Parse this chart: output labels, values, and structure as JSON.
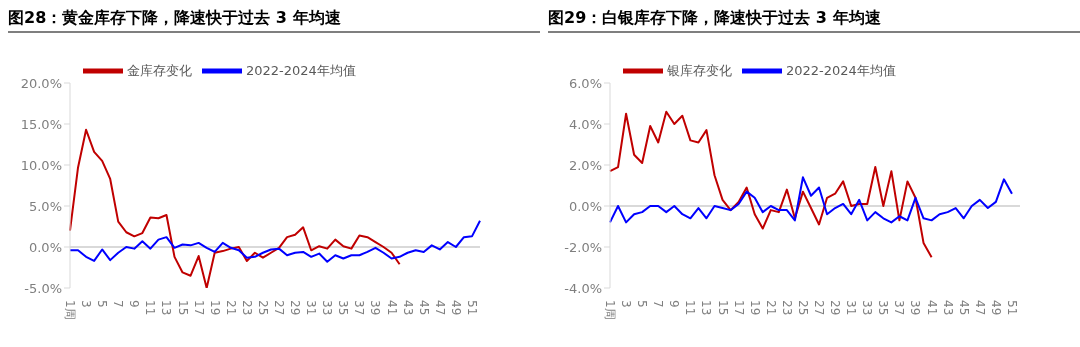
{
  "chart_data": [
    {
      "type": "line",
      "title": "图28：黄金库存下降，降速快于过去 3 年均速",
      "categories": [
        "1周",
        null,
        "3",
        null,
        "5",
        null,
        "7",
        null,
        "9",
        null,
        "11",
        null,
        "13",
        null,
        "15",
        null,
        "17",
        null,
        "19",
        null,
        "21",
        null,
        "23",
        null,
        "25",
        null,
        "27",
        null,
        "29",
        null,
        "31",
        null,
        "33",
        null,
        "35",
        null,
        "37",
        null,
        "39",
        null,
        "41",
        null,
        "43",
        null,
        "45",
        null,
        "47",
        null,
        "49",
        null,
        "51",
        null
      ],
      "series": [
        {
          "name": "金库存变化",
          "color": "#c00000",
          "values": [
            2.0,
            9.7,
            14.3,
            11.6,
            10.5,
            8.3,
            3.1,
            1.8,
            1.3,
            1.7,
            3.6,
            3.5,
            3.9,
            -1.2,
            -3.1,
            -3.5,
            -1.1,
            -5.0,
            -0.7,
            -0.5,
            -0.2,
            0.0,
            -1.7,
            -0.7,
            -1.3,
            -0.7,
            -0.1,
            1.2,
            1.5,
            2.4,
            -0.4,
            0.1,
            -0.2,
            0.9,
            0.1,
            -0.2,
            1.4,
            1.2,
            0.6,
            0.0,
            -0.7,
            -2.1,
            null,
            null,
            null,
            null,
            null,
            null,
            null,
            null,
            null,
            null
          ]
        },
        {
          "name": "2022-2024年均值",
          "color": "#0000ff",
          "values": [
            -0.4,
            -0.4,
            -1.2,
            -1.7,
            -0.3,
            -1.6,
            -0.7,
            0.0,
            -0.2,
            0.7,
            -0.2,
            0.9,
            1.2,
            -0.1,
            0.3,
            0.2,
            0.5,
            -0.1,
            -0.6,
            0.5,
            -0.1,
            -0.4,
            -1.3,
            -1.2,
            -0.7,
            -0.3,
            -0.2,
            -1.0,
            -0.7,
            -0.6,
            -1.2,
            -0.8,
            -1.8,
            -1.0,
            -1.4,
            -1.0,
            -1.0,
            -0.6,
            -0.1,
            -0.7,
            -1.4,
            -1.2,
            -0.7,
            -0.4,
            -0.6,
            0.2,
            -0.3,
            0.6,
            0.0,
            1.2,
            1.3,
            3.2
          ]
        }
      ],
      "ylim": [
        -5,
        20
      ],
      "yticks": [
        {
          "value": -5,
          "label": "-5.0%"
        },
        {
          "value": 0,
          "label": "0.0%"
        },
        {
          "value": 5,
          "label": "5.0%"
        },
        {
          "value": 10,
          "label": "10.0%"
        },
        {
          "value": 15,
          "label": "15.0%"
        },
        {
          "value": 20,
          "label": "20.0%"
        }
      ],
      "ref_lines": [
        {
          "axis": "y",
          "value": 0,
          "color": "#d9d9d9"
        }
      ],
      "grid": false,
      "legend": "top",
      "marker": "none",
      "line_style": "solid"
    },
    {
      "type": "line",
      "title": "图29：白银库存下降，降速快于过去 3 年均速",
      "categories": [
        "1周",
        null,
        "3",
        null,
        "5",
        null,
        "7",
        null,
        "9",
        null,
        "11",
        null,
        "13",
        null,
        "15",
        null,
        "17",
        null,
        "19",
        null,
        "21",
        null,
        "23",
        null,
        "25",
        null,
        "27",
        null,
        "29",
        null,
        "31",
        null,
        "33",
        null,
        "35",
        null,
        "37",
        null,
        "39",
        null,
        "41",
        null,
        "43",
        null,
        "45",
        null,
        "47",
        null,
        "49",
        null,
        "51",
        null
      ],
      "series": [
        {
          "name": "银库存变化",
          "color": "#c00000",
          "values": [
            1.7,
            1.9,
            4.5,
            2.5,
            2.1,
            3.9,
            3.1,
            4.6,
            4.0,
            4.4,
            3.2,
            3.1,
            3.7,
            1.5,
            0.3,
            -0.2,
            0.2,
            0.9,
            -0.4,
            -1.1,
            -0.2,
            -0.3,
            0.8,
            -0.6,
            0.7,
            -0.1,
            -0.9,
            0.4,
            0.6,
            1.2,
            0.0,
            0.1,
            0.1,
            1.9,
            0.0,
            1.7,
            -0.7,
            1.2,
            0.4,
            -1.8,
            -2.5,
            null,
            null,
            null,
            null,
            null,
            null,
            null,
            null,
            null,
            null,
            null
          ]
        },
        {
          "name": "2022-2024年均值",
          "color": "#0000ff",
          "values": [
            -0.8,
            0.0,
            -0.8,
            -0.4,
            -0.3,
            0.0,
            0.0,
            -0.3,
            0.0,
            -0.4,
            -0.6,
            -0.1,
            -0.6,
            0.0,
            -0.1,
            -0.2,
            0.1,
            0.7,
            0.4,
            -0.3,
            0.0,
            -0.2,
            -0.2,
            -0.7,
            1.4,
            0.5,
            0.9,
            -0.4,
            -0.1,
            0.1,
            -0.4,
            0.3,
            -0.7,
            -0.3,
            -0.6,
            -0.8,
            -0.5,
            -0.7,
            0.4,
            -0.6,
            -0.7,
            -0.4,
            -0.3,
            -0.1,
            -0.6,
            0.0,
            0.3,
            -0.1,
            0.2,
            1.3,
            0.6,
            null
          ]
        }
      ],
      "ylim": [
        -4,
        6
      ],
      "yticks": [
        {
          "value": -4,
          "label": "-4.0%"
        },
        {
          "value": -2,
          "label": "-2.0%"
        },
        {
          "value": 0,
          "label": "0.0%"
        },
        {
          "value": 2,
          "label": "2.0%"
        },
        {
          "value": 4,
          "label": "4.0%"
        },
        {
          "value": 6,
          "label": "6.0%"
        }
      ],
      "ref_lines": [
        {
          "axis": "y",
          "value": 0,
          "color": "#d9d9d9"
        }
      ],
      "grid": false,
      "legend": "top",
      "marker": "none",
      "line_style": "solid"
    }
  ]
}
